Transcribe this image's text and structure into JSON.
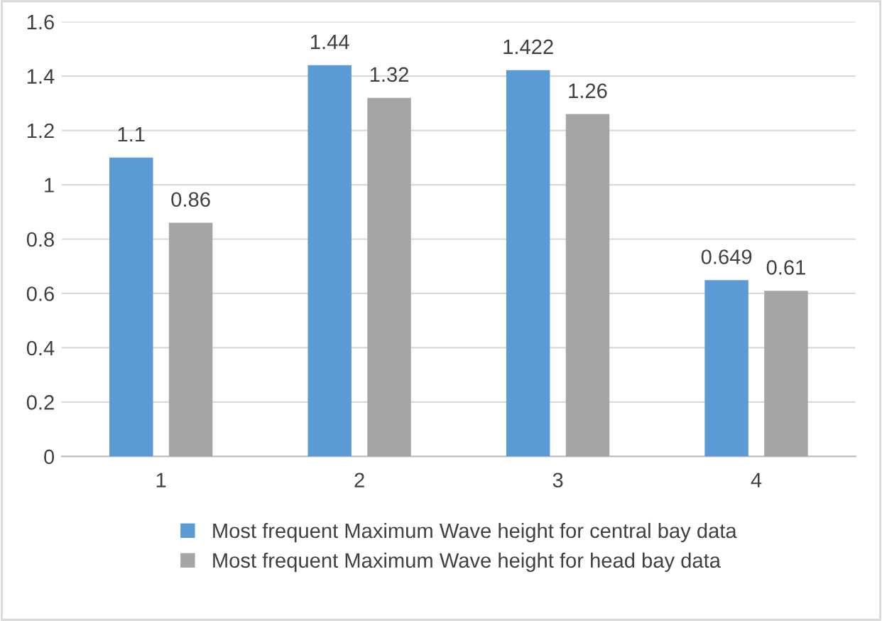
{
  "chart_data": {
    "type": "bar",
    "categories": [
      "1",
      "2",
      "3",
      "4"
    ],
    "series": [
      {
        "name": "Most frequent Maximum Wave height for central bay data",
        "color": "#5b9bd5",
        "values": [
          1.1,
          1.44,
          1.422,
          0.649
        ]
      },
      {
        "name": "Most frequent Maximum Wave height for head bay data",
        "color": "#a5a5a5",
        "values": [
          0.86,
          1.32,
          1.26,
          0.61
        ]
      }
    ],
    "ylim": [
      0,
      1.6
    ],
    "yticks": [
      0,
      0.2,
      0.4,
      0.6,
      0.8,
      1,
      1.2,
      1.4,
      1.6
    ],
    "grid": "y",
    "legend": "bottom",
    "data_labels": true
  }
}
